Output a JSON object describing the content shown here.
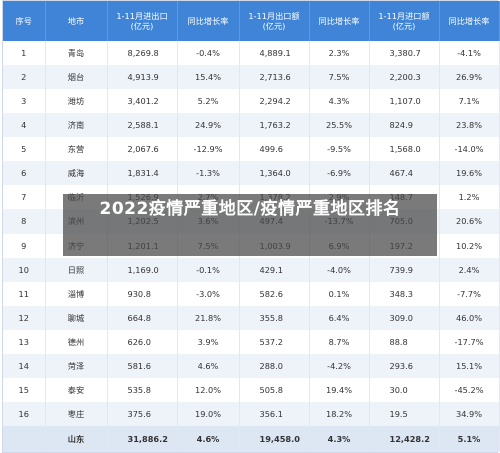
{
  "overlay_title": "2022疫情严重地区/疫情严重地区排名",
  "headers": [
    "序号",
    "地市",
    "1-11月进出口\n(亿元)",
    "同比增长率",
    "1-11月出口额\n(亿元)",
    "同比增长率",
    "1-11月进口额\n(亿元)",
    "同比增长率"
  ],
  "rows": [
    [
      "1",
      "青岛",
      "8,269.8",
      "-0.4%",
      "4,889.1",
      "2.3%",
      "3,380.7",
      "-4.1%"
    ],
    [
      "2",
      "烟台",
      "4,913.9",
      "15.4%",
      "2,713.6",
      "7.5%",
      "2,200.3",
      "26.9%"
    ],
    [
      "3",
      "潍坊",
      "3,401.2",
      "5.2%",
      "2,294.2",
      "4.3%",
      "1,107.0",
      "7.1%"
    ],
    [
      "4",
      "济南",
      "2,588.1",
      "24.9%",
      "1,763.2",
      "25.5%",
      "824.9",
      "23.8%"
    ],
    [
      "5",
      "东营",
      "2,067.6",
      "-12.9%",
      "499.6",
      "-9.5%",
      "1,568.0",
      "-14.0%"
    ],
    [
      "6",
      "威海",
      "1,831.4",
      "-1.3%",
      "1,364.0",
      "-6.9%",
      "467.4",
      "19.6%"
    ],
    [
      "7",
      "临沂",
      "1,526.9",
      "2.7%",
      "1,378.2",
      "2.9%",
      "148.7",
      "1.2%"
    ],
    [
      "8",
      "滨州",
      "1,202.5",
      "3.6%",
      "497.4",
      "-13.7%",
      "705.0",
      "20.6%"
    ],
    [
      "9",
      "济宁",
      "1,201.1",
      "7.5%",
      "1,003.9",
      "6.9%",
      "197.2",
      "10.2%"
    ],
    [
      "10",
      "日照",
      "1,169.0",
      "-0.1%",
      "429.1",
      "-4.0%",
      "739.9",
      "2.4%"
    ],
    [
      "11",
      "淄博",
      "930.8",
      "-3.0%",
      "582.6",
      "0.1%",
      "348.3",
      "-7.7%"
    ],
    [
      "12",
      "聊城",
      "664.8",
      "21.8%",
      "355.8",
      "6.4%",
      "309.0",
      "46.0%"
    ],
    [
      "13",
      "德州",
      "626.0",
      "3.9%",
      "537.2",
      "8.7%",
      "88.8",
      "-17.7%"
    ],
    [
      "14",
      "菏泽",
      "581.6",
      "4.6%",
      "288.0",
      "-4.2%",
      "293.6",
      "15.1%"
    ],
    [
      "15",
      "泰安",
      "535.8",
      "12.0%",
      "505.8",
      "19.4%",
      "30.0",
      "-45.2%"
    ],
    [
      "16",
      "枣庄",
      "375.6",
      "19.0%",
      "356.1",
      "18.2%",
      "19.5",
      "34.9%"
    ]
  ],
  "total": [
    "",
    "山东",
    "31,886.2",
    "4.6%",
    "19,458.0",
    "4.3%",
    "12,428.2",
    "5.1%"
  ]
}
